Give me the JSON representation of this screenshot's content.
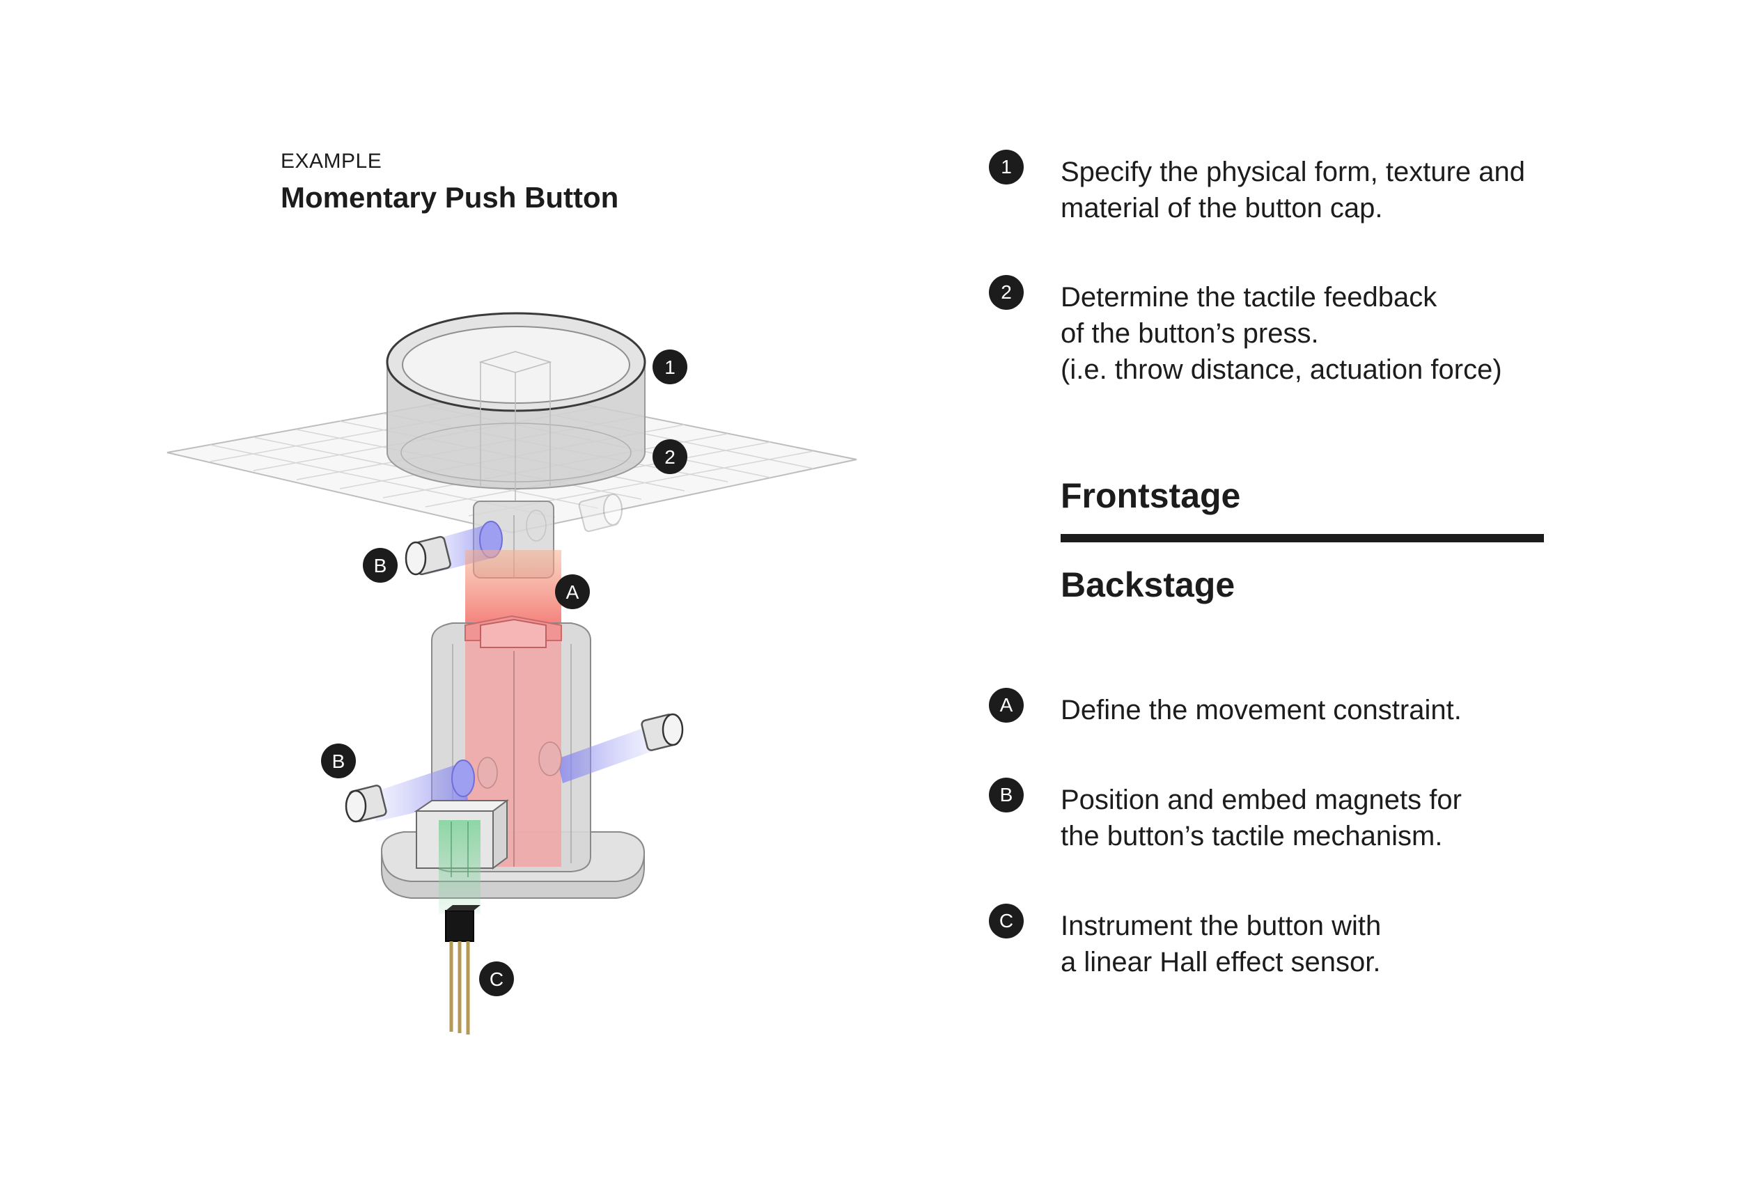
{
  "header": {
    "eyebrow": "EXAMPLE",
    "title": "Momentary Push Button"
  },
  "callouts": {
    "one": "1",
    "two": "2",
    "a": "A",
    "b": "B",
    "c": "C"
  },
  "notes": [
    {
      "marker": "1",
      "text": "Specify the physical form, texture and\nmaterial of the button cap."
    },
    {
      "marker": "2",
      "text": "Determine the tactile feedback\nof the button’s press.\n(i.e. throw distance, actuation force)"
    },
    {
      "marker": "A",
      "text": "Define the movement constraint."
    },
    {
      "marker": "B",
      "text": "Position and embed magnets for\nthe button’s tactile mechanism."
    },
    {
      "marker": "C",
      "text": "Instrument the button with\na linear Hall effect sensor."
    }
  ],
  "sections": {
    "frontstage": "Frontstage",
    "backstage": "Backstage"
  },
  "colors": {
    "ink": "#1c1c1c",
    "constraint_red": "#f08a8a",
    "magnet_blue": "#8f8ff0",
    "sensor_green": "#7fd39a",
    "body_grey": "#d4d4d4"
  }
}
